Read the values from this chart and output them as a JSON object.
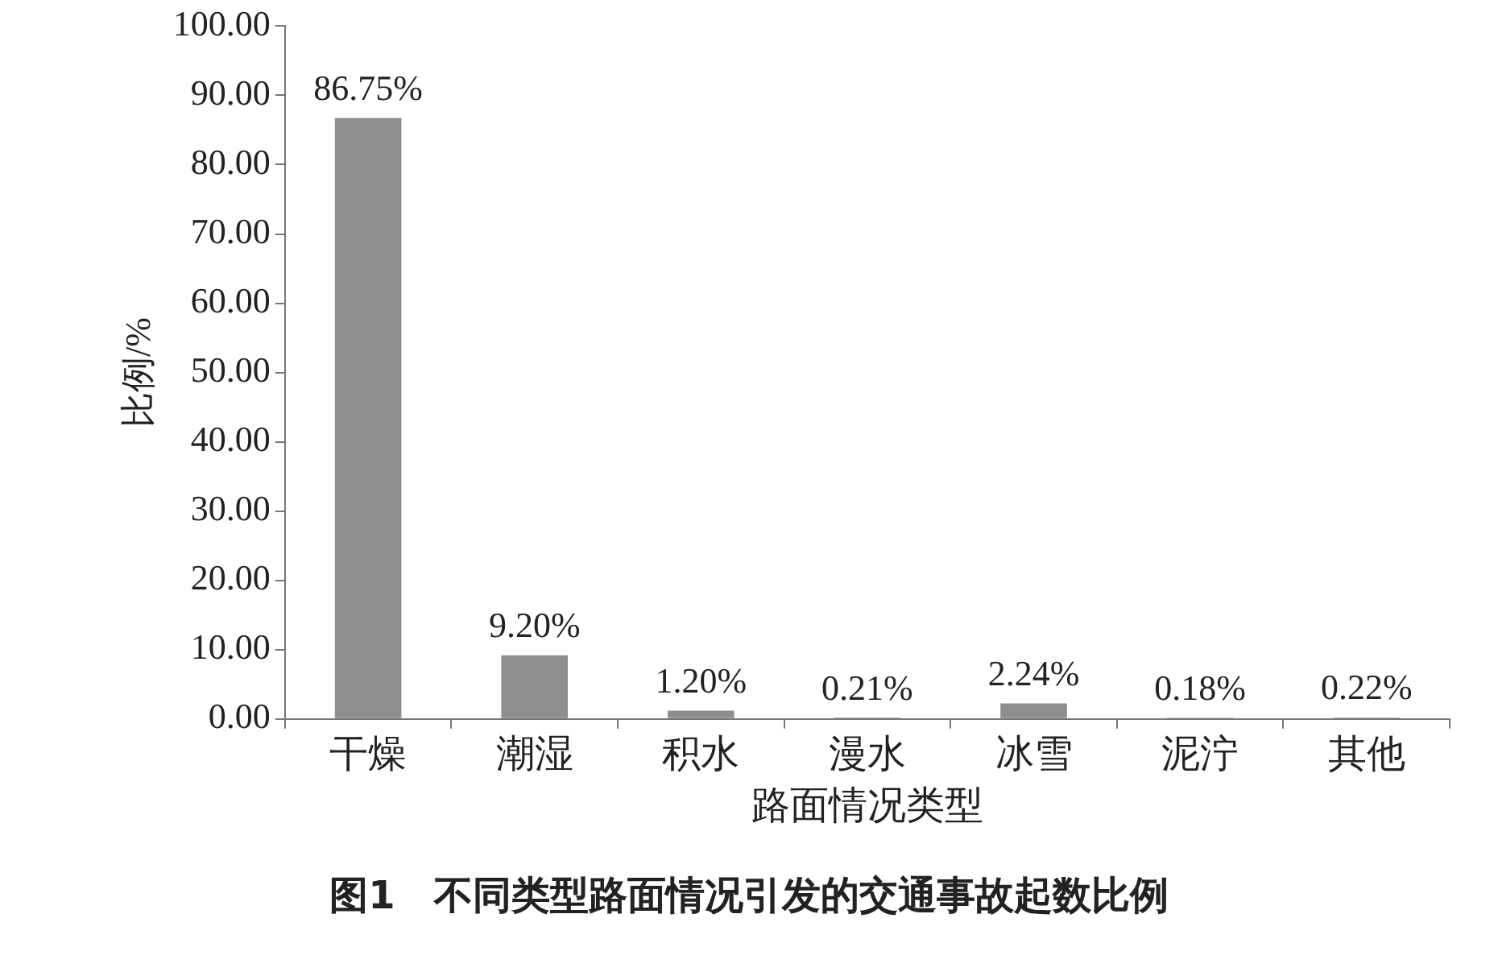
{
  "chart_data": {
    "type": "bar",
    "title": "图1　不同类型路面情况引发的交通事故起数比例",
    "xlabel": "路面情况类型",
    "ylabel": "比例/%",
    "categories": [
      "干燥",
      "潮湿",
      "积水",
      "漫水",
      "冰雪",
      "泥泞",
      "其他"
    ],
    "values": [
      86.75,
      9.2,
      1.2,
      0.21,
      2.24,
      0.18,
      0.22
    ],
    "value_labels": [
      "86.75%",
      "9.20%",
      "1.20%",
      "0.21%",
      "2.24%",
      "0.18%",
      "0.22%"
    ],
    "color": "#8e8e8e",
    "ylim": [
      0,
      100
    ],
    "yticks": [
      {
        "value": 0,
        "label": "0.00"
      },
      {
        "value": 10,
        "label": "10.00"
      },
      {
        "value": 20,
        "label": "20.00"
      },
      {
        "value": 30,
        "label": "30.00"
      },
      {
        "value": 40,
        "label": "40.00"
      },
      {
        "value": 50,
        "label": "50.00"
      },
      {
        "value": 60,
        "label": "60.00"
      },
      {
        "value": 70,
        "label": "70.00"
      },
      {
        "value": 80,
        "label": "80.00"
      },
      {
        "value": 90,
        "label": "90.00"
      },
      {
        "value": 100,
        "label": "100.00"
      }
    ],
    "grid": false,
    "legend": false
  }
}
